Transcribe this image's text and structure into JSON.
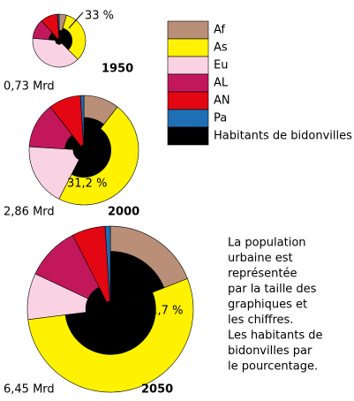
{
  "chart_data": {
    "type": "pie",
    "series": [
      {
        "name": "Af",
        "color": "#b98f78",
        "values": [
          4.5,
          10.5,
          19
        ],
        "slum": [
          0.4,
          0.6,
          0.7
        ]
      },
      {
        "name": "As",
        "color": "#fff200",
        "values": [
          33,
          47,
          54
        ],
        "slum": [
          0.5,
          0.5,
          0.55
        ]
      },
      {
        "name": "Eu",
        "color": "#f9d2e3",
        "values": [
          39,
          18.5,
          9
        ],
        "slum": [
          0.15,
          0.2,
          0.3
        ]
      },
      {
        "name": "AL",
        "color": "#c2185b",
        "values": [
          12,
          13.5,
          10.5
        ],
        "slum": [
          0.4,
          0.35,
          0.3
        ]
      },
      {
        "name": "AN",
        "color": "#e30613",
        "values": [
          10.5,
          9.5,
          6.5
        ],
        "slum": [
          0.1,
          0.1,
          0.1
        ]
      },
      {
        "name": "Pa",
        "color": "#1f6fb5",
        "values": [
          1,
          1,
          1
        ],
        "slum": [
          0.1,
          0.1,
          0.1
        ]
      }
    ],
    "slum_name": "Habitants de bidonvilles",
    "slum_color": "#000000",
    "charts": [
      {
        "year": "1950",
        "total": "0,73 Mrd",
        "share_label": "33 %"
      },
      {
        "year": "2000",
        "total": "2,86 Mrd",
        "share_label": "31,2 %"
      },
      {
        "year": "2050",
        "total": "6,45 Mrd",
        "share_label": "31,7 %"
      }
    ],
    "note": [
      "La population",
      "urbaine est",
      "représentée",
      "par la taille des",
      "graphiques et",
      "les chiffres.",
      "Les habitants de",
      "bidonvilles par",
      "le pourcentage."
    ]
  }
}
